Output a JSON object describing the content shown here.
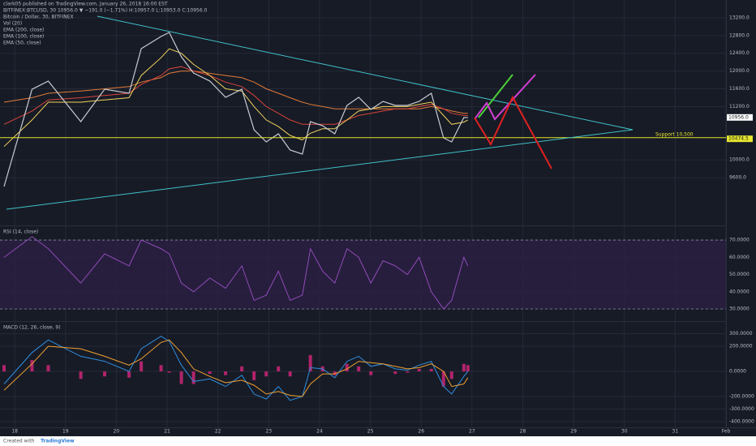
{
  "header": {
    "author_line": "clark05 published on TradingView.com, January 26, 2018 16:00 EST",
    "symbol_line": "BITFINEX:BTCUSD, 30  10956.0 ▼ −191.0 (−1.71%) H:10957.0 L:10953.0 C:10956.0"
  },
  "footer": {
    "created": "Created with",
    "brand": "TradingView"
  },
  "chart_data": [
    {
      "type": "line",
      "title": "Bitcoin / Dollar, 30, BITFINEX",
      "volume_label": "Vol (20)",
      "x": [
        17.79,
        18.34,
        18.66,
        19.3,
        19.77,
        20.25,
        20.49,
        20.88,
        21.04,
        21.28,
        21.52,
        21.84,
        22.15,
        22.47,
        22.71,
        22.95,
        23.19,
        23.42,
        23.66,
        23.82,
        24.06,
        24.3,
        24.54,
        24.77,
        25.01,
        25.25,
        25.49,
        25.73,
        25.96,
        26.2,
        26.44,
        26.6,
        26.84,
        26.92
      ],
      "values": [
        9400,
        11590,
        11774,
        10861,
        11591,
        11500,
        12504,
        12778,
        12870,
        12322,
        11957,
        11774,
        11409,
        11591,
        10678,
        10405,
        10587,
        10222,
        10131,
        10861,
        10770,
        10587,
        11226,
        11409,
        11135,
        11318,
        11226,
        11226,
        11318,
        11500,
        10496,
        10405,
        10952,
        10956
      ],
      "color": "#c9ccd4",
      "series": [
        {
          "name": "EMA (200, close)",
          "color": "#e07b39",
          "values": [
            11300,
            11400,
            11500,
            11550,
            11600,
            11650,
            11750,
            11850,
            11950,
            12000,
            12000,
            11950,
            11900,
            11850,
            11750,
            11600,
            11500,
            11400,
            11300,
            11250,
            11200,
            11150,
            11150,
            11150,
            11150,
            11150,
            11150,
            11150,
            11150,
            11200,
            11150,
            11100,
            11050,
            11050
          ]
        },
        {
          "name": "EMA (100, close)",
          "color": "#d9453a",
          "values": [
            10800,
            11100,
            11350,
            11400,
            11450,
            11500,
            11700,
            11900,
            12050,
            12100,
            12000,
            11900,
            11750,
            11650,
            11450,
            11200,
            11050,
            10900,
            10800,
            10800,
            10800,
            10800,
            10900,
            11000,
            11050,
            11100,
            11150,
            11150,
            11200,
            11250,
            11150,
            11050,
            11000,
            11000
          ]
        },
        {
          "name": "EMA (50, close)",
          "color": "#f2d35b",
          "values": [
            10300,
            10900,
            11300,
            11300,
            11350,
            11400,
            11900,
            12300,
            12500,
            12400,
            12150,
            11900,
            11600,
            11550,
            11200,
            10900,
            10750,
            10550,
            10450,
            10600,
            10700,
            10700,
            10900,
            11100,
            11150,
            11200,
            11200,
            11200,
            11250,
            11300,
            11000,
            10800,
            10850,
            10900
          ]
        }
      ],
      "xlim": [
        17.71,
        32
      ],
      "xticks": [
        18,
        19,
        20,
        21,
        22,
        23,
        24,
        25,
        26,
        27,
        28,
        29,
        30,
        31,
        {
          "value": 32,
          "label": "Feb"
        }
      ],
      "ylim": [
        8670,
        13600
      ],
      "yticks": [
        {
          "value": 13200,
          "label": "13200.0"
        },
        {
          "value": 12800,
          "label": "12800.0"
        },
        {
          "value": 12400,
          "label": "12400.0"
        },
        {
          "value": 12000,
          "label": "12000.0"
        },
        {
          "value": 11600,
          "label": "11600.0"
        },
        {
          "value": 11200,
          "label": "11200.0"
        },
        {
          "value": 10000,
          "label": "10000.0"
        },
        {
          "value": 9600,
          "label": "9600.0"
        }
      ],
      "support": {
        "value": 10500,
        "label": "Support 10,500",
        "color": "#e6e62e"
      },
      "price_tags": [
        {
          "value": 10956,
          "label": "10956.0",
          "color": "#ffffff"
        },
        {
          "value": 10474.5,
          "label": "10474.5",
          "color": "#e6e62e"
        }
      ]
    },
    {
      "type": "line",
      "title": "RSI (14, close)",
      "x": [
        17.79,
        18.34,
        18.66,
        19.3,
        19.77,
        20.25,
        20.49,
        20.88,
        21.04,
        21.28,
        21.52,
        21.84,
        22.15,
        22.47,
        22.71,
        22.95,
        23.19,
        23.42,
        23.66,
        23.82,
        24.06,
        24.3,
        24.54,
        24.77,
        25.01,
        25.25,
        25.49,
        25.73,
        25.96,
        26.2,
        26.44,
        26.6,
        26.84,
        26.92
      ],
      "values": [
        60,
        72,
        65,
        45,
        62,
        55,
        70,
        65,
        62,
        45,
        40,
        48,
        42,
        55,
        35,
        38,
        52,
        35,
        38,
        65,
        52,
        45,
        65,
        60,
        45,
        58,
        55,
        50,
        60,
        40,
        30,
        35,
        60,
        55
      ],
      "color": "#9b4fc4",
      "ylim": [
        23.4,
        78.5
      ],
      "yticks": [
        {
          "value": 70,
          "label": "70.0000"
        },
        {
          "value": 60,
          "label": "60.0000"
        },
        {
          "value": 50,
          "label": "50.0000"
        },
        {
          "value": 40,
          "label": "40.0000"
        },
        {
          "value": 30,
          "label": "30.0000"
        }
      ],
      "bands": [
        70,
        30
      ]
    },
    {
      "type": "line",
      "title": "MACD (12, 26, close, 9)",
      "x": [
        17.79,
        18.34,
        18.66,
        19.3,
        19.77,
        20.25,
        20.49,
        20.88,
        21.04,
        21.28,
        21.52,
        21.84,
        22.15,
        22.47,
        22.71,
        22.95,
        23.19,
        23.42,
        23.66,
        23.82,
        24.06,
        24.3,
        24.54,
        24.77,
        25.01,
        25.25,
        25.49,
        25.73,
        25.96,
        26.2,
        26.44,
        26.6,
        26.84,
        26.92
      ],
      "macd": {
        "color": "#2f8fe0",
        "values": [
          -100,
          150,
          250,
          120,
          80,
          0,
          180,
          280,
          240,
          50,
          -80,
          -60,
          -120,
          -30,
          -180,
          -220,
          -120,
          -230,
          -200,
          30,
          20,
          -50,
          80,
          120,
          40,
          60,
          20,
          10,
          50,
          80,
          -120,
          -180,
          -40,
          0
        ]
      },
      "signal": {
        "color": "#f0a030",
        "values": [
          -150,
          60,
          200,
          180,
          120,
          50,
          100,
          230,
          250,
          150,
          20,
          -40,
          -90,
          -70,
          -110,
          -180,
          -160,
          -190,
          -200,
          -100,
          -20,
          -20,
          20,
          80,
          70,
          60,
          40,
          20,
          30,
          60,
          0,
          -120,
          -100,
          -50
        ]
      },
      "histogram": {
        "color": "#b0246a",
        "values": [
          50,
          90,
          50,
          -60,
          -40,
          -50,
          80,
          50,
          -10,
          -100,
          -100,
          -20,
          -30,
          40,
          -70,
          -40,
          40,
          -40,
          0,
          130,
          40,
          -30,
          60,
          40,
          -30,
          0,
          -20,
          -10,
          20,
          20,
          -120,
          -60,
          60,
          50
        ]
      },
      "ylim": [
        -432,
        387
      ],
      "yticks": [
        {
          "value": 300,
          "label": "300.0000"
        },
        {
          "value": 200,
          "label": "200.0000"
        },
        {
          "value": 0,
          "label": "0.0000"
        },
        {
          "value": -200,
          "label": "-200.0000"
        },
        {
          "value": -300,
          "label": "-300.0000"
        },
        {
          "value": -400,
          "label": "-400.0000"
        }
      ]
    }
  ]
}
